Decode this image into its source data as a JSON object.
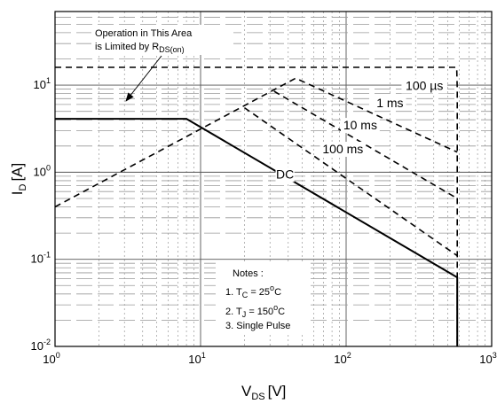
{
  "chart_data": {
    "type": "line",
    "xscale": "log",
    "yscale": "log",
    "xlim": [
      1,
      1000
    ],
    "ylim": [
      0.01,
      70
    ],
    "grid": true,
    "xlabel": {
      "main": "V",
      "sub": "DS",
      "unit": "[V]"
    },
    "ylabel": {
      "main": "I",
      "sub": "D",
      "unit": "[A]"
    },
    "x_ticks": [
      {
        "value": 1,
        "base": "10",
        "exp": "0"
      },
      {
        "value": 10,
        "base": "10",
        "exp": "1"
      },
      {
        "value": 100,
        "base": "10",
        "exp": "2"
      },
      {
        "value": 1000,
        "base": "10",
        "exp": "3"
      }
    ],
    "y_ticks": [
      {
        "value": 0.01,
        "base": "10",
        "exp": "-2"
      },
      {
        "value": 0.1,
        "base": "10",
        "exp": "-1"
      },
      {
        "value": 1,
        "base": "10",
        "exp": "0"
      },
      {
        "value": 10,
        "base": "10",
        "exp": "1"
      }
    ],
    "series": [
      {
        "name": "DC",
        "style": "solid",
        "points": [
          [
            1,
            4.1
          ],
          [
            8,
            4.1
          ],
          [
            580,
            0.062
          ],
          [
            580,
            0.01
          ]
        ]
      },
      {
        "name": "100 ms",
        "style": "dashed",
        "points": [
          [
            20,
            5.5
          ],
          [
            580,
            0.11
          ]
        ]
      },
      {
        "name": "10 ms",
        "style": "dashed",
        "points": [
          [
            32,
            8.5
          ],
          [
            580,
            0.5
          ]
        ]
      },
      {
        "name": "1 ms",
        "style": "dashed",
        "points": [
          [
            1,
            0.4
          ],
          [
            45,
            12
          ],
          [
            580,
            1.7
          ]
        ]
      },
      {
        "name": "100 µs",
        "style": "dashed",
        "points": [
          [
            1,
            16
          ],
          [
            575,
            16
          ],
          [
            580,
            9
          ],
          [
            580,
            0.01
          ]
        ]
      }
    ],
    "curve_labels": [
      {
        "text": "DC",
        "x": 38,
        "y": 0.85
      },
      {
        "text": "100 ms",
        "x": 95,
        "y": 1.65
      },
      {
        "text": "10 ms",
        "x": 125,
        "y": 3.1
      },
      {
        "text": "1 ms",
        "x": 200,
        "y": 5.6
      },
      {
        "text": "100 µs",
        "x": 345,
        "y": 8.8
      }
    ],
    "annotations": {
      "rds_note": {
        "line1": "Operation in This Area",
        "line2_prefix": "is Limited by R",
        "line2_sub": "DS(on)"
      },
      "notes": {
        "title": "Notes :",
        "n1_prefix": "1. T",
        "n1_sub": "C",
        "n1_value": " = 25",
        "n1_deg": "o",
        "n1_unit": "C",
        "n2_prefix": "2. T",
        "n2_sub": "J",
        "n2_value": " = 150",
        "n2_deg": "o",
        "n2_unit": "C",
        "n3": "3. Single Pulse"
      }
    }
  }
}
